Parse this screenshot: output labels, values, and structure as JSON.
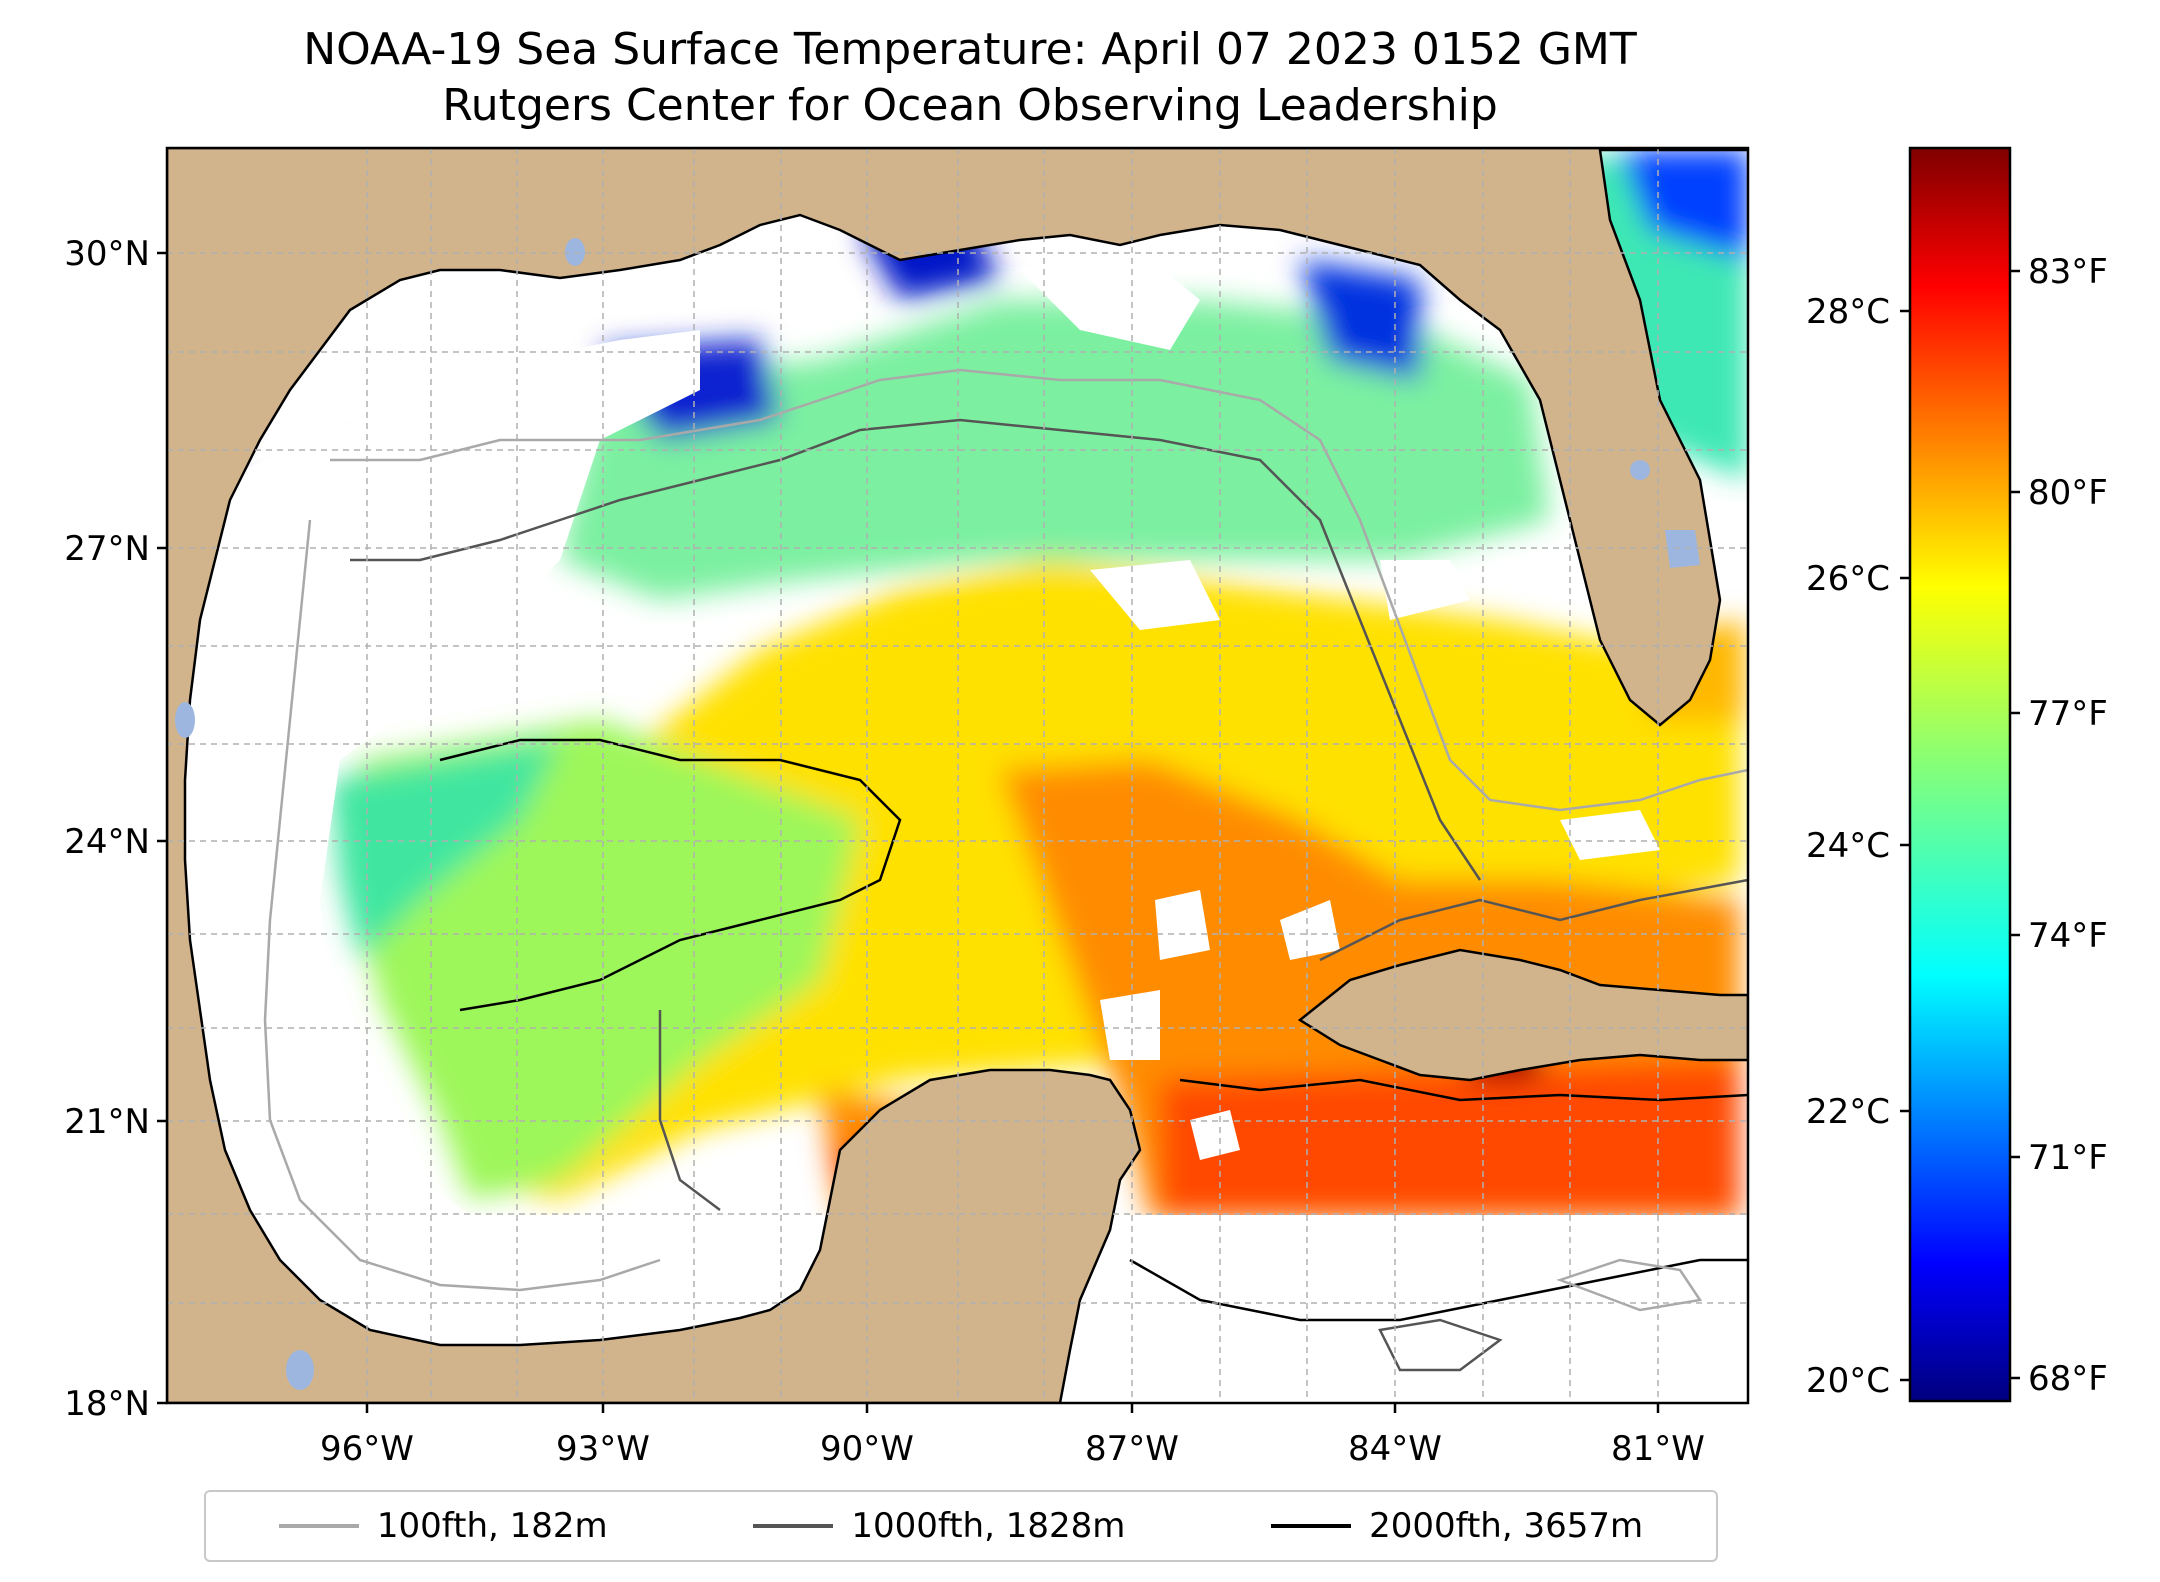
{
  "title": {
    "line1": "NOAA-19 Sea Surface Temperature: April 07 2023 0152 GMT",
    "line2": "Rutgers Center for Ocean Observing Leadership"
  },
  "map": {
    "region": "Gulf of Mexico",
    "lat_range": [
      18,
      30.5
    ],
    "lon_range": [
      -98.3,
      -80.7
    ],
    "lat_ticks": [
      "30°N",
      "27°N",
      "24°N",
      "21°N",
      "18°N"
    ],
    "lon_ticks": [
      "96°W",
      "93°W",
      "90°W",
      "87°W",
      "84°W",
      "81°W"
    ],
    "land_color": "#d2b48c",
    "no_data_color": "#ffffff"
  },
  "colorbar": {
    "celsius_ticks": [
      "28°C",
      "26°C",
      "24°C",
      "22°C",
      "20°C"
    ],
    "fahrenheit_ticks": [
      "83°F",
      "80°F",
      "77°F",
      "74°F",
      "71°F",
      "68°F"
    ],
    "colormap": "jet",
    "range_f": [
      67.6,
      84.7
    ]
  },
  "legend": {
    "items": [
      {
        "label": "100fth, 182m",
        "color": "#a9a9a9"
      },
      {
        "label": "1000fth, 1828m",
        "color": "#555555"
      },
      {
        "label": "2000fth, 3657m",
        "color": "#000000"
      }
    ]
  }
}
